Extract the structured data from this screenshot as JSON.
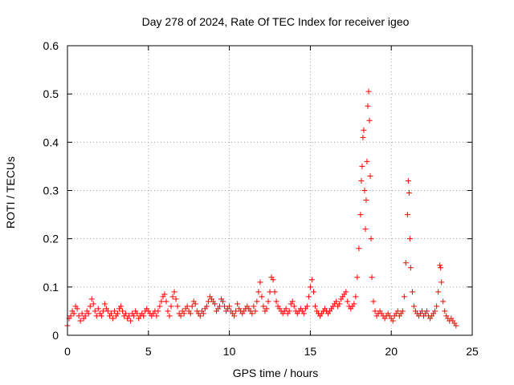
{
  "chart_data": {
    "type": "scatter",
    "title": "Day 278 of 2024, Rate Of TEC Index for receiver igeo",
    "xlabel": "GPS time / hours",
    "ylabel": "ROTI / TECUs",
    "xlim": [
      0,
      25
    ],
    "ylim": [
      0,
      0.6
    ],
    "xticks": [
      0,
      5,
      10,
      15,
      20,
      25
    ],
    "yticks": [
      0,
      0.1,
      0.2,
      0.3,
      0.4,
      0.5,
      0.6
    ],
    "xtick_labels": [
      "0",
      "5",
      "10",
      "15",
      "20",
      "25"
    ],
    "ytick_labels": [
      "0",
      "0.1",
      "0.2",
      "0.3",
      "0.4",
      "0.5",
      "0.6"
    ],
    "grid": true,
    "marker": "+",
    "color": "#ff0000",
    "series": [
      {
        "name": "ROTI",
        "points": [
          [
            0.0,
            0.02
          ],
          [
            0.1,
            0.035
          ],
          [
            0.2,
            0.04
          ],
          [
            0.3,
            0.05
          ],
          [
            0.4,
            0.045
          ],
          [
            0.5,
            0.06
          ],
          [
            0.6,
            0.055
          ],
          [
            0.7,
            0.04
          ],
          [
            0.8,
            0.03
          ],
          [
            0.9,
            0.045
          ],
          [
            1.0,
            0.035
          ],
          [
            1.1,
            0.04
          ],
          [
            1.2,
            0.05
          ],
          [
            1.3,
            0.045
          ],
          [
            1.4,
            0.06
          ],
          [
            1.5,
            0.075
          ],
          [
            1.6,
            0.065
          ],
          [
            1.7,
            0.05
          ],
          [
            1.8,
            0.04
          ],
          [
            1.9,
            0.055
          ],
          [
            2.0,
            0.045
          ],
          [
            2.1,
            0.04
          ],
          [
            2.2,
            0.05
          ],
          [
            2.3,
            0.065
          ],
          [
            2.4,
            0.055
          ],
          [
            2.5,
            0.05
          ],
          [
            2.6,
            0.04
          ],
          [
            2.7,
            0.045
          ],
          [
            2.8,
            0.035
          ],
          [
            2.9,
            0.05
          ],
          [
            3.0,
            0.04
          ],
          [
            3.1,
            0.045
          ],
          [
            3.2,
            0.055
          ],
          [
            3.3,
            0.06
          ],
          [
            3.4,
            0.05
          ],
          [
            3.5,
            0.04
          ],
          [
            3.6,
            0.045
          ],
          [
            3.7,
            0.035
          ],
          [
            3.8,
            0.04
          ],
          [
            3.9,
            0.03
          ],
          [
            4.0,
            0.045
          ],
          [
            4.1,
            0.04
          ],
          [
            4.2,
            0.05
          ],
          [
            4.3,
            0.045
          ],
          [
            4.4,
            0.035
          ],
          [
            4.5,
            0.04
          ],
          [
            4.6,
            0.045
          ],
          [
            4.7,
            0.04
          ],
          [
            4.8,
            0.05
          ],
          [
            4.9,
            0.055
          ],
          [
            5.0,
            0.05
          ],
          [
            5.1,
            0.045
          ],
          [
            5.2,
            0.04
          ],
          [
            5.3,
            0.045
          ],
          [
            5.4,
            0.05
          ],
          [
            5.5,
            0.04
          ],
          [
            5.6,
            0.05
          ],
          [
            5.7,
            0.06
          ],
          [
            5.8,
            0.07
          ],
          [
            5.9,
            0.08
          ],
          [
            6.0,
            0.085
          ],
          [
            6.1,
            0.07
          ],
          [
            6.2,
            0.05
          ],
          [
            6.3,
            0.04
          ],
          [
            6.4,
            0.06
          ],
          [
            6.5,
            0.08
          ],
          [
            6.6,
            0.09
          ],
          [
            6.7,
            0.075
          ],
          [
            6.8,
            0.06
          ],
          [
            6.9,
            0.045
          ],
          [
            7.0,
            0.04
          ],
          [
            7.1,
            0.05
          ],
          [
            7.2,
            0.045
          ],
          [
            7.3,
            0.055
          ],
          [
            7.4,
            0.06
          ],
          [
            7.5,
            0.05
          ],
          [
            7.6,
            0.045
          ],
          [
            7.7,
            0.06
          ],
          [
            7.8,
            0.07
          ],
          [
            7.9,
            0.065
          ],
          [
            8.0,
            0.05
          ],
          [
            8.1,
            0.045
          ],
          [
            8.2,
            0.04
          ],
          [
            8.3,
            0.05
          ],
          [
            8.4,
            0.045
          ],
          [
            8.5,
            0.055
          ],
          [
            8.6,
            0.06
          ],
          [
            8.7,
            0.07
          ],
          [
            8.8,
            0.08
          ],
          [
            8.9,
            0.075
          ],
          [
            9.0,
            0.07
          ],
          [
            9.1,
            0.065
          ],
          [
            9.2,
            0.05
          ],
          [
            9.3,
            0.055
          ],
          [
            9.4,
            0.06
          ],
          [
            9.5,
            0.075
          ],
          [
            9.6,
            0.07
          ],
          [
            9.7,
            0.06
          ],
          [
            9.8,
            0.05
          ],
          [
            9.9,
            0.055
          ],
          [
            10.0,
            0.06
          ],
          [
            10.1,
            0.05
          ],
          [
            10.2,
            0.045
          ],
          [
            10.3,
            0.04
          ],
          [
            10.4,
            0.05
          ],
          [
            10.5,
            0.065
          ],
          [
            10.6,
            0.055
          ],
          [
            10.7,
            0.05
          ],
          [
            10.8,
            0.045
          ],
          [
            10.9,
            0.05
          ],
          [
            11.0,
            0.055
          ],
          [
            11.1,
            0.06
          ],
          [
            11.2,
            0.055
          ],
          [
            11.3,
            0.05
          ],
          [
            11.4,
            0.045
          ],
          [
            11.5,
            0.06
          ],
          [
            11.6,
            0.05
          ],
          [
            11.7,
            0.07
          ],
          [
            11.8,
            0.09
          ],
          [
            11.9,
            0.11
          ],
          [
            12.0,
            0.08
          ],
          [
            12.1,
            0.06
          ],
          [
            12.2,
            0.05
          ],
          [
            12.3,
            0.055
          ],
          [
            12.4,
            0.07
          ],
          [
            12.5,
            0.09
          ],
          [
            12.6,
            0.12
          ],
          [
            12.7,
            0.115
          ],
          [
            12.8,
            0.09
          ],
          [
            12.9,
            0.07
          ],
          [
            13.0,
            0.06
          ],
          [
            13.1,
            0.055
          ],
          [
            13.2,
            0.05
          ],
          [
            13.3,
            0.045
          ],
          [
            13.4,
            0.05
          ],
          [
            13.5,
            0.055
          ],
          [
            13.6,
            0.045
          ],
          [
            13.7,
            0.05
          ],
          [
            13.8,
            0.065
          ],
          [
            13.9,
            0.07
          ],
          [
            14.0,
            0.06
          ],
          [
            14.1,
            0.05
          ],
          [
            14.2,
            0.045
          ],
          [
            14.3,
            0.05
          ],
          [
            14.4,
            0.055
          ],
          [
            14.5,
            0.05
          ],
          [
            14.6,
            0.045
          ],
          [
            14.7,
            0.055
          ],
          [
            14.8,
            0.06
          ],
          [
            14.9,
            0.08
          ],
          [
            15.0,
            0.1
          ],
          [
            15.1,
            0.115
          ],
          [
            15.2,
            0.09
          ],
          [
            15.3,
            0.06
          ],
          [
            15.4,
            0.05
          ],
          [
            15.5,
            0.045
          ],
          [
            15.6,
            0.04
          ],
          [
            15.7,
            0.045
          ],
          [
            15.8,
            0.05
          ],
          [
            15.9,
            0.055
          ],
          [
            16.0,
            0.05
          ],
          [
            16.1,
            0.045
          ],
          [
            16.2,
            0.05
          ],
          [
            16.3,
            0.055
          ],
          [
            16.4,
            0.06
          ],
          [
            16.5,
            0.065
          ],
          [
            16.6,
            0.07
          ],
          [
            16.7,
            0.06
          ],
          [
            16.8,
            0.065
          ],
          [
            16.9,
            0.075
          ],
          [
            17.0,
            0.08
          ],
          [
            17.1,
            0.085
          ],
          [
            17.2,
            0.09
          ],
          [
            17.3,
            0.07
          ],
          [
            17.4,
            0.06
          ],
          [
            17.5,
            0.055
          ],
          [
            17.6,
            0.06
          ],
          [
            17.7,
            0.065
          ],
          [
            17.8,
            0.08
          ],
          [
            17.9,
            0.12
          ],
          [
            18.0,
            0.18
          ],
          [
            18.1,
            0.25
          ],
          [
            18.15,
            0.32
          ],
          [
            18.2,
            0.35
          ],
          [
            18.25,
            0.41
          ],
          [
            18.3,
            0.425
          ],
          [
            18.35,
            0.3
          ],
          [
            18.4,
            0.22
          ],
          [
            18.45,
            0.28
          ],
          [
            18.5,
            0.36
          ],
          [
            18.55,
            0.475
          ],
          [
            18.6,
            0.505
          ],
          [
            18.65,
            0.445
          ],
          [
            18.7,
            0.33
          ],
          [
            18.75,
            0.2
          ],
          [
            18.8,
            0.12
          ],
          [
            18.9,
            0.07
          ],
          [
            19.0,
            0.05
          ],
          [
            19.1,
            0.04
          ],
          [
            19.2,
            0.045
          ],
          [
            19.3,
            0.05
          ],
          [
            19.4,
            0.045
          ],
          [
            19.5,
            0.04
          ],
          [
            19.6,
            0.035
          ],
          [
            19.7,
            0.04
          ],
          [
            19.8,
            0.045
          ],
          [
            19.9,
            0.04
          ],
          [
            20.0,
            0.035
          ],
          [
            20.1,
            0.03
          ],
          [
            20.2,
            0.04
          ],
          [
            20.3,
            0.045
          ],
          [
            20.4,
            0.05
          ],
          [
            20.5,
            0.04
          ],
          [
            20.6,
            0.045
          ],
          [
            20.7,
            0.05
          ],
          [
            20.8,
            0.08
          ],
          [
            20.9,
            0.15
          ],
          [
            21.0,
            0.25
          ],
          [
            21.05,
            0.32
          ],
          [
            21.1,
            0.295
          ],
          [
            21.15,
            0.2
          ],
          [
            21.2,
            0.14
          ],
          [
            21.3,
            0.09
          ],
          [
            21.4,
            0.06
          ],
          [
            21.5,
            0.05
          ],
          [
            21.6,
            0.045
          ],
          [
            21.7,
            0.04
          ],
          [
            21.8,
            0.045
          ],
          [
            21.9,
            0.05
          ],
          [
            22.0,
            0.04
          ],
          [
            22.1,
            0.045
          ],
          [
            22.2,
            0.05
          ],
          [
            22.3,
            0.04
          ],
          [
            22.4,
            0.035
          ],
          [
            22.5,
            0.04
          ],
          [
            22.6,
            0.045
          ],
          [
            22.7,
            0.05
          ],
          [
            22.8,
            0.06
          ],
          [
            22.9,
            0.09
          ],
          [
            23.0,
            0.145
          ],
          [
            23.05,
            0.14
          ],
          [
            23.1,
            0.11
          ],
          [
            23.2,
            0.07
          ],
          [
            23.3,
            0.05
          ],
          [
            23.4,
            0.04
          ],
          [
            23.5,
            0.035
          ],
          [
            23.6,
            0.03
          ],
          [
            23.7,
            0.035
          ],
          [
            23.8,
            0.03
          ],
          [
            23.9,
            0.025
          ],
          [
            24.0,
            0.02
          ]
        ]
      }
    ]
  }
}
